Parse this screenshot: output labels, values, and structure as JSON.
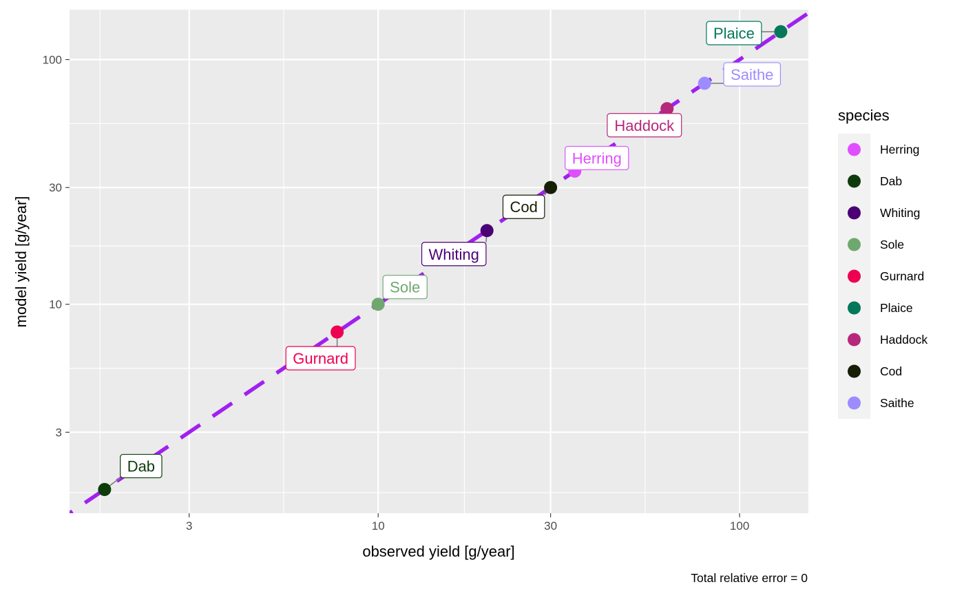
{
  "chart_data": {
    "type": "scatter",
    "title": "",
    "xlabel": "observed yield [g/year]",
    "ylabel": "model yield [g/year]",
    "xscale": "log10",
    "yscale": "log10",
    "xlim": [
      1.4,
      155
    ],
    "ylim": [
      1.4,
      160
    ],
    "x_ticks": [
      3,
      10,
      30,
      100
    ],
    "x_tick_labels": [
      "3",
      "10",
      "30",
      "100"
    ],
    "y_ticks": [
      3,
      10,
      30,
      100
    ],
    "y_tick_labels": [
      "3",
      "10",
      "30",
      "100"
    ],
    "grid": true,
    "reference_line": {
      "type": "identity",
      "style": "dashed",
      "color": "#a020f0"
    },
    "legend": {
      "title": "species",
      "position": "right"
    },
    "caption": "Total relative error = 0",
    "series": [
      {
        "name": "Herring",
        "x": 35,
        "y": 35,
        "color": "#e04fff"
      },
      {
        "name": "Dab",
        "x": 1.75,
        "y": 1.75,
        "color": "#0e3b0b"
      },
      {
        "name": "Whiting",
        "x": 20,
        "y": 20,
        "color": "#4b0075"
      },
      {
        "name": "Sole",
        "x": 10,
        "y": 10,
        "color": "#6fa86f"
      },
      {
        "name": "Gurnard",
        "x": 7.7,
        "y": 7.7,
        "color": "#ee0052"
      },
      {
        "name": "Plaice",
        "x": 130,
        "y": 130,
        "color": "#03775a"
      },
      {
        "name": "Haddock",
        "x": 63,
        "y": 63,
        "color": "#b5287a"
      },
      {
        "name": "Cod",
        "x": 30,
        "y": 30,
        "color": "#161e04"
      },
      {
        "name": "Saithe",
        "x": 80,
        "y": 80,
        "color": "#9d8cff"
      }
    ]
  }
}
